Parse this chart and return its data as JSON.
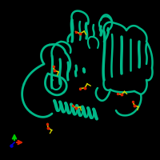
{
  "bg_color": "#000000",
  "fig_width": 2.0,
  "fig_height": 2.0,
  "dpi": 100,
  "protein_color": "#00b888",
  "protein_color_dark": "#009970",
  "ligand_yellow": "#cccc00",
  "ligand_red": "#dd2200",
  "axis_x_color": "#dd2200",
  "axis_y_color": "#00cc00",
  "axis_z_color": "#0000cc"
}
